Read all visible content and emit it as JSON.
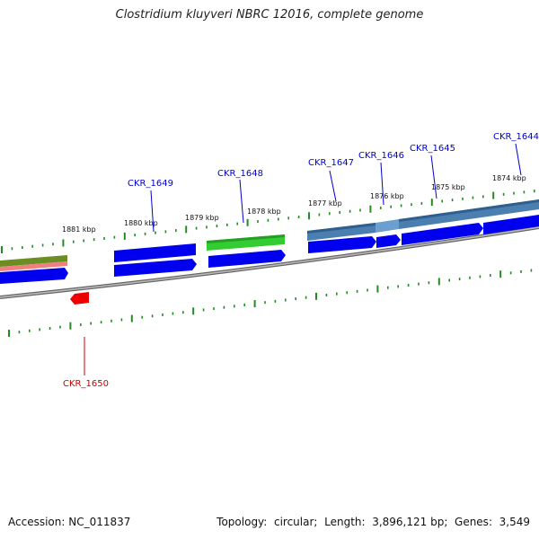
{
  "title": "Clostridium kluyveri NBRC 12016, complete genome",
  "accession_label": "Accession:",
  "accession": "NC_011837",
  "summary": {
    "topology_label": "Topology:",
    "topology": "circular",
    "length_label": "Length:",
    "length": "3,896,121 bp",
    "genes_label": "Genes:",
    "genes": "3,549"
  },
  "ticks": [
    "1881 kbp",
    "1880 kbp",
    "1879 kbp",
    "1878 kbp",
    "1877 kbp",
    "1876 kbp",
    "1875 kbp",
    "1874 kbp"
  ],
  "gene_labels": [
    "CKR_1650",
    "CKR_1649",
    "CKR_1648",
    "CKR_1647",
    "CKR_1646",
    "CKR_1645",
    "CKR_1644"
  ],
  "colors": {
    "cds": "#0000ee",
    "highlight": "#ee0000",
    "green": "#33cc33",
    "steelblue": "#4a7fb0",
    "olive": "#6b8e23",
    "pink": "#f08080",
    "tick": "#228b22",
    "backbone": "#808080",
    "label_blue": "#0000cc",
    "label_red": "#cc0000"
  }
}
